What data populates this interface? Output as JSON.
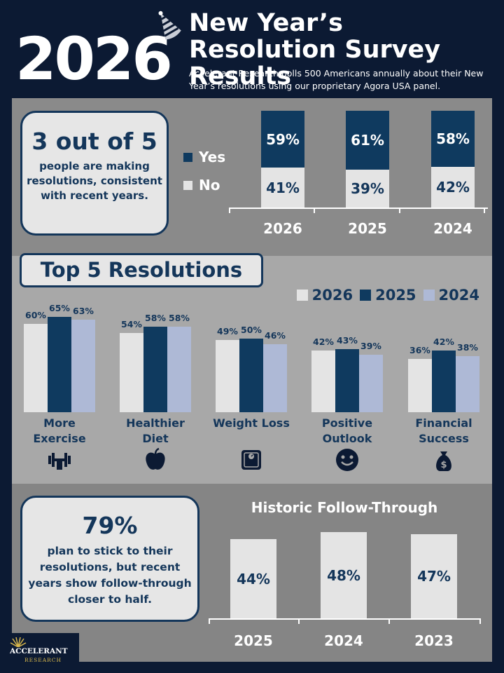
{
  "header": {
    "year": "2026",
    "title": "New Year’s Resolution Survey Results",
    "subtitle": "Accelerant Research polls 500 Americans annually about their New Year’s resolutions using our proprietary Agora USA panel."
  },
  "colors": {
    "navy": "#0f3a5f",
    "light": "#e4e4e4",
    "periwinkle": "#aeb9d6",
    "text": "#14365a"
  },
  "section1": {
    "stat": "3 out of 5",
    "stat_text": "people are making resolutions, consistent with recent years.",
    "legend": {
      "yes": "Yes",
      "no": "No"
    }
  },
  "section2": {
    "title": "Top 5 Resolutions"
  },
  "section3": {
    "stat": "79%",
    "stat_text": "plan to stick to their resolutions, but recent years show follow-through closer to half.",
    "chart_title": "Historic Follow-Through"
  },
  "logo": {
    "name": "ACCELERANT",
    "sub": "RESEARCH"
  },
  "chart_data": [
    {
      "type": "bar",
      "stacked": true,
      "categories": [
        "2026",
        "2025",
        "2024"
      ],
      "series": [
        {
          "name": "Yes",
          "values": [
            59,
            61,
            58
          ],
          "labels": [
            "59%",
            "61%",
            "58%"
          ]
        },
        {
          "name": "No",
          "values": [
            41,
            39,
            42
          ],
          "labels": [
            "41%",
            "39%",
            "42%"
          ]
        }
      ],
      "ylim": [
        0,
        100
      ]
    },
    {
      "type": "bar",
      "title": "Top 5 Resolutions",
      "categories": [
        "More Exercise",
        "Healthier Diet",
        "Weight Loss",
        "Positive Outlook",
        "Financial Success"
      ],
      "icons": [
        "dumbbell-icon",
        "apple-icon",
        "scale-icon",
        "smiley-icon",
        "money-bag-icon"
      ],
      "series": [
        {
          "name": "2026",
          "values": [
            60,
            54,
            49,
            42,
            36
          ],
          "labels": [
            "60%",
            "54%",
            "49%",
            "42%",
            "36%"
          ]
        },
        {
          "name": "2025",
          "values": [
            65,
            58,
            50,
            43,
            42
          ],
          "labels": [
            "65%",
            "58%",
            "50%",
            "43%",
            "42%"
          ]
        },
        {
          "name": "2024",
          "values": [
            63,
            58,
            46,
            39,
            38
          ],
          "labels": [
            "63%",
            "58%",
            "46%",
            "39%",
            "38%"
          ]
        }
      ],
      "ylim": [
        0,
        70
      ],
      "legend": "top-right"
    },
    {
      "type": "bar",
      "title": "Historic Follow-Through",
      "categories": [
        "2025",
        "2024",
        "2023"
      ],
      "values": [
        44,
        48,
        47
      ],
      "labels": [
        "44%",
        "48%",
        "47%"
      ],
      "ylim": [
        0,
        50
      ]
    }
  ]
}
